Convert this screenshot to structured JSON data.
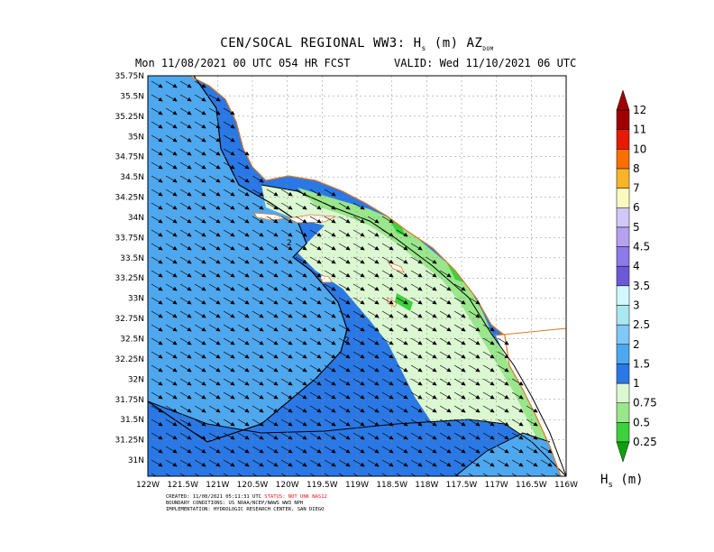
{
  "title": {
    "line1_prefix": "CEN/SOCAL REGIONAL WW3: H",
    "line1_sub": "s",
    "line1_mid": " (m) AZ",
    "line1_sub2": "DOM",
    "line2_left": "Mon 11/08/2021 00 UTC 054 HR FCST",
    "line2_right": "VALID: Wed 11/10/2021 06 UTC"
  },
  "axes": {
    "lon_labels": [
      "122W",
      "121.5W",
      "121W",
      "120.5W",
      "120W",
      "119.5W",
      "119W",
      "118.5W",
      "118W",
      "117.5W",
      "117W",
      "116.5W",
      "116W"
    ],
    "lat_labels": [
      "35.75N",
      "35.5N",
      "35.25N",
      "35N",
      "34.75N",
      "34.5N",
      "34.25N",
      "34N",
      "33.75N",
      "33.5N",
      "33.25N",
      "33N",
      "32.75N",
      "32.5N",
      "32.25N",
      "32N",
      "31.75N",
      "31.5N",
      "31.25N",
      "31N"
    ],
    "lon_range": [
      -122,
      -116
    ],
    "lat_range": [
      30.8,
      35.75
    ]
  },
  "contour_labels": [
    "2",
    "2"
  ],
  "colorbar": {
    "levels": [
      "0.25",
      "0.5",
      "0.75",
      "1",
      "1.5",
      "2",
      "2.5",
      "3",
      "3.5",
      "4",
      "4.5",
      "5",
      "6",
      "7",
      "8",
      "10",
      "11",
      "12"
    ],
    "colors": [
      "#0fa00f",
      "#3cd23c",
      "#9ae68c",
      "#dcf8d2",
      "#2a78e6",
      "#4ea8f0",
      "#80c8f8",
      "#aae8f0",
      "#d2f8ff",
      "#6a5ad8",
      "#8c7ae8",
      "#b4a2f0",
      "#d2c8f8",
      "#fafac0",
      "#fab42a",
      "#fa6e00",
      "#e61a00",
      "#a00000"
    ]
  },
  "unit_label": "H",
  "unit_sub": "s",
  "unit_suffix": " (m)",
  "footer": {
    "created": "CREATED: 11/08/2021 05:11:31 UTC",
    "status": "STATUS: NOT UNK NAS12",
    "boundary": "BOUNDARY CONDITIONS: US NOAA/NCEP/NAWS WW3 NPH",
    "implementation": "IMPLEMENTATION: HYDROLOGIC RESEARCH CENTER, SAN DIEGO"
  }
}
